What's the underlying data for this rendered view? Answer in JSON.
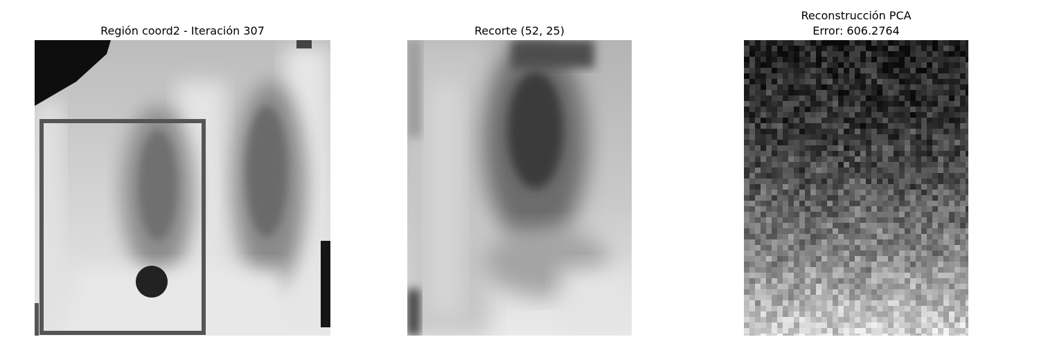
{
  "panels": [
    {
      "id": "region",
      "title": "Región coord2 - Iteración 307"
    },
    {
      "id": "crop",
      "title": "Recorte (52, 25)"
    },
    {
      "id": "pca",
      "title_line1": "Reconstrucción PCA",
      "title_line2": "Error: 606.2764"
    }
  ],
  "colors": {
    "box_stroke": "#555555",
    "marker_fill": "#222222"
  }
}
